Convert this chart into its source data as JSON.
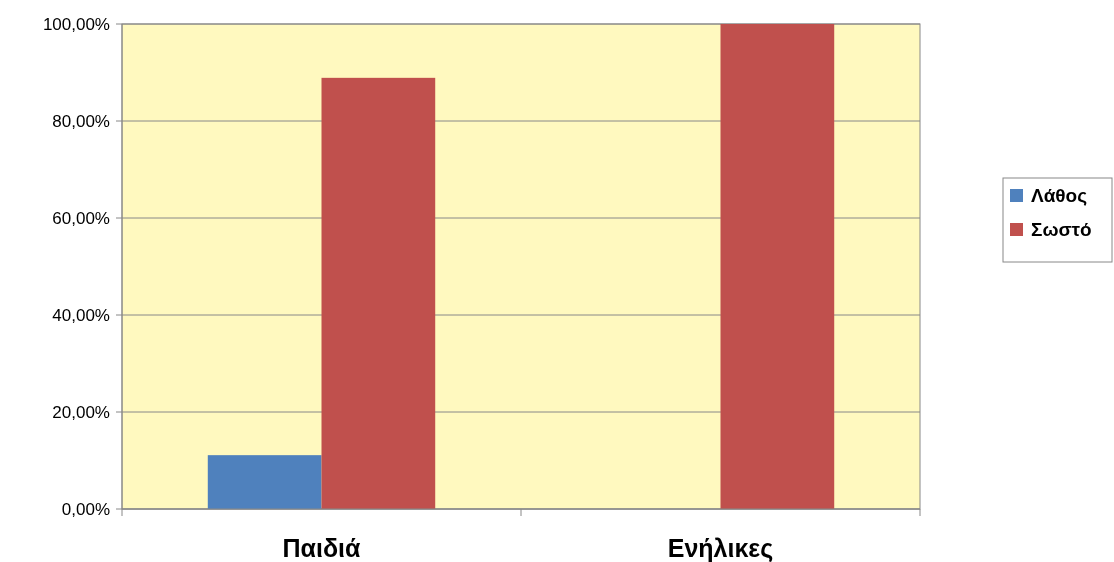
{
  "chart_data": {
    "type": "bar",
    "categories": [
      "Παιδιά",
      "Ενήλικες"
    ],
    "series": [
      {
        "name": "Λάθος",
        "color": "#4f81bd",
        "values": [
          11.1,
          0
        ]
      },
      {
        "name": "Σωστό",
        "color": "#c0504d",
        "values": [
          88.9,
          100
        ]
      }
    ],
    "ylim": [
      0,
      100
    ],
    "yticks": [
      {
        "value": 0,
        "label": "0,00%"
      },
      {
        "value": 20,
        "label": "20,00%"
      },
      {
        "value": 40,
        "label": "40,00%"
      },
      {
        "value": 60,
        "label": "60,00%"
      },
      {
        "value": 80,
        "label": "80,00%"
      },
      {
        "value": 100,
        "label": "100,00%"
      }
    ],
    "grid": "y",
    "legend": "right"
  }
}
